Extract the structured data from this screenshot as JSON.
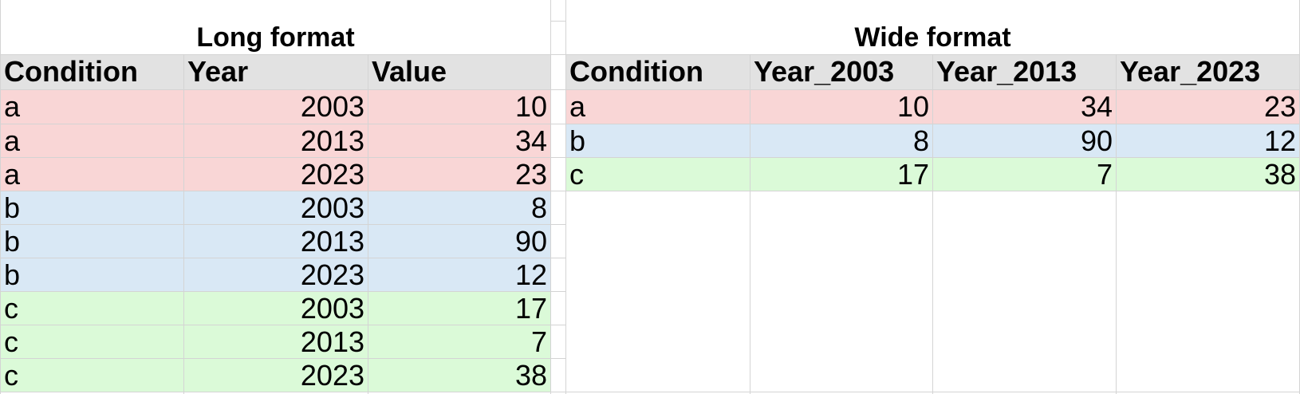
{
  "long_table": {
    "title": "Long format",
    "headers": [
      "Condition",
      "Year",
      "Value"
    ],
    "rows": [
      [
        "a",
        "2003",
        "10"
      ],
      [
        "a",
        "2013",
        "34"
      ],
      [
        "a",
        "2023",
        "23"
      ],
      [
        "b",
        "2003",
        "8"
      ],
      [
        "b",
        "2013",
        "90"
      ],
      [
        "b",
        "2023",
        "12"
      ],
      [
        "c",
        "2003",
        "17"
      ],
      [
        "c",
        "2013",
        "7"
      ],
      [
        "c",
        "2023",
        "38"
      ]
    ]
  },
  "wide_table": {
    "title": "Wide format",
    "headers": [
      "Condition",
      "Year_2003",
      "Year_2013",
      "Year_2023"
    ],
    "rows": [
      [
        "a",
        "10",
        "34",
        "23"
      ],
      [
        "b",
        "8",
        "90",
        "12"
      ],
      [
        "c",
        "17",
        "7",
        "38"
      ]
    ]
  },
  "colors": {
    "header_bg": "#e2e2e2",
    "condition_a": "#f9d6d6",
    "condition_b": "#d9e8f5",
    "condition_c": "#dbfad8",
    "gridline": "#d4d4d4"
  }
}
